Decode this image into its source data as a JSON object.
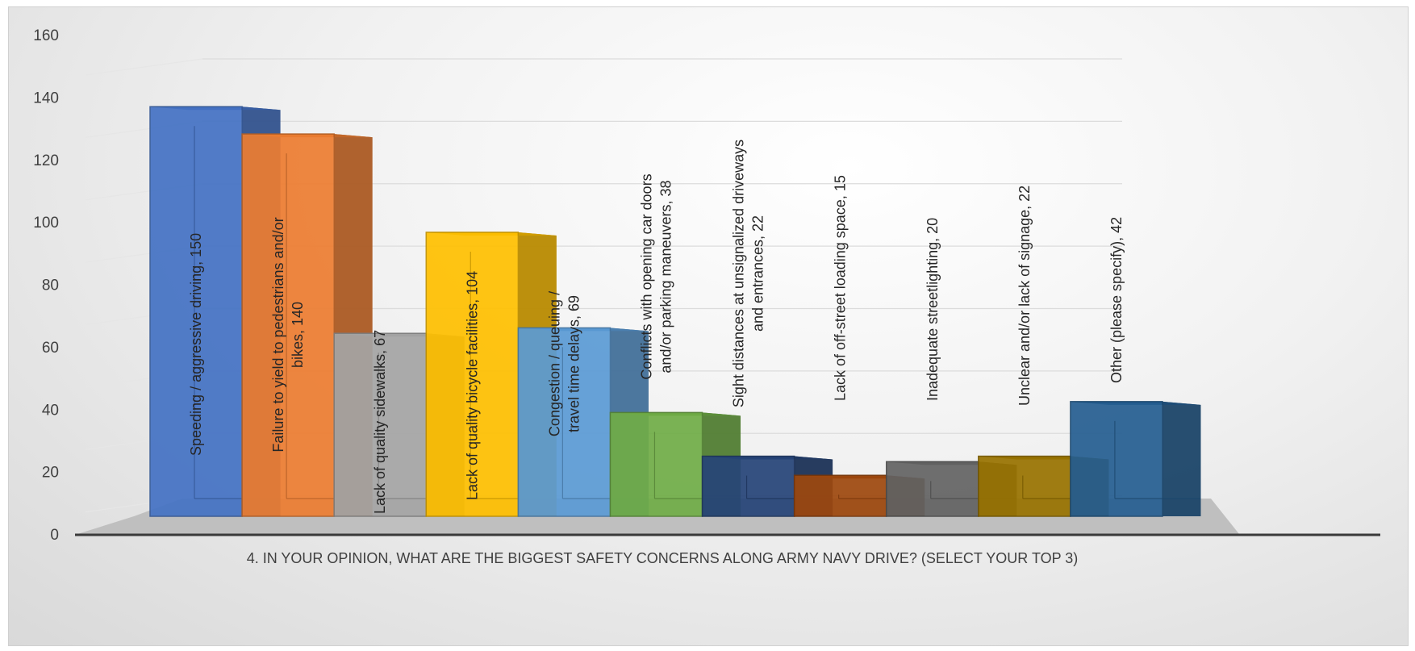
{
  "chart_data": {
    "type": "bar",
    "categories": [
      "Speeding / aggressive driving",
      "Failure to yield to pedestrians and/or bikes",
      "Lack of quality sidewalks",
      "Lack of quality bicycle facilities",
      "Congestion / queuing / travel time delays",
      "Conflicts with opening car doors and/or parking maneuvers",
      "Sight distances at unsignalized driveways and entrances",
      "Lack of off-street loading space",
      "Inadequate streetlighting",
      "Unclear and/or lack of signage",
      "Other (please specify)"
    ],
    "values": [
      150,
      140,
      67,
      104,
      69,
      38,
      22,
      15,
      20,
      22,
      42
    ],
    "data_labels": [
      [
        "Speeding / aggressive driving, 150"
      ],
      [
        "Failure to yield to pedestrians and/or",
        "bikes, 140"
      ],
      [
        "Lack of quality sidewalks, 67"
      ],
      [
        "Lack of quality bicycle facilities, 104"
      ],
      [
        "Congestion / queuing /",
        "travel time delays, 69"
      ],
      [
        "Conflicts with opening car doors",
        "and/or parking maneuvers, 38"
      ],
      [
        "Sight distances at unsignalized driveways",
        "and entrances, 22"
      ],
      [
        "Lack of off-street loading space, 15"
      ],
      [
        "Inadequate streetlighting, 20"
      ],
      [
        "Unclear and/or lack of signage, 22"
      ],
      [
        "Other (please specify), 42"
      ]
    ],
    "colors": [
      "#4472C4",
      "#ED7D31",
      "#A5A5A5",
      "#FFC000",
      "#5B9BD5",
      "#70AD47",
      "#264478",
      "#9E480E",
      "#636363",
      "#997300",
      "#255E91"
    ],
    "yticks": [
      "0",
      "20",
      "40",
      "60",
      "80",
      "100",
      "120",
      "140",
      "160"
    ],
    "ylim": [
      0,
      160
    ],
    "xlabel": "4. IN YOUR OPINION, WHAT ARE THE BIGGEST SAFETY CONCERNS ALONG ARMY NAVY DRIVE? (SELECT YOUR TOP 3)",
    "title": "",
    "ylabel": "",
    "grid": true,
    "style": "3d-column"
  }
}
